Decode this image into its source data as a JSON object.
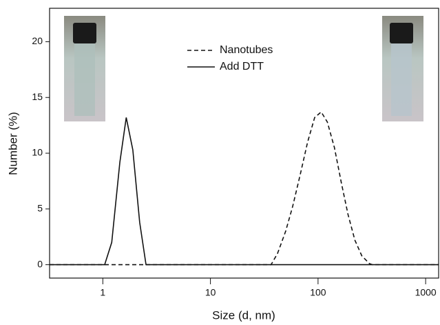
{
  "chart_data": {
    "type": "line",
    "xlabel": "Size (d, nm)",
    "ylabel": "Number (%)",
    "xscale": "log",
    "xlim": [
      0.32,
      1320
    ],
    "ylim": [
      -1.2,
      23
    ],
    "xticks": [
      1,
      10,
      100,
      1000
    ],
    "yticks": [
      0,
      5,
      10,
      15,
      20
    ],
    "series": [
      {
        "name": "Nanotubes",
        "color": "#111111",
        "dash": true,
        "x": [
          0.32,
          1.04,
          2.52,
          36.6,
          42,
          50,
          58,
          68,
          80,
          93,
          107,
          122,
          142,
          165,
          190,
          220,
          255,
          300,
          320,
          1320
        ],
        "values": [
          0,
          0,
          0,
          0,
          1,
          3,
          5.2,
          8,
          11,
          13.2,
          13.7,
          12.8,
          10.5,
          7.3,
          4.5,
          2.2,
          0.8,
          0.1,
          0,
          0
        ]
      },
      {
        "name": "Add DTT",
        "color": "#111111",
        "dash": false,
        "x": [
          0.32,
          1.04,
          1.21,
          1.44,
          1.65,
          1.9,
          2.2,
          2.52,
          36.6,
          320,
          1320
        ],
        "values": [
          0,
          0,
          2,
          9.2,
          13.2,
          10.3,
          3.8,
          0,
          0,
          0,
          0
        ],
        "segments_hidden_under": null
      }
    ]
  }
}
